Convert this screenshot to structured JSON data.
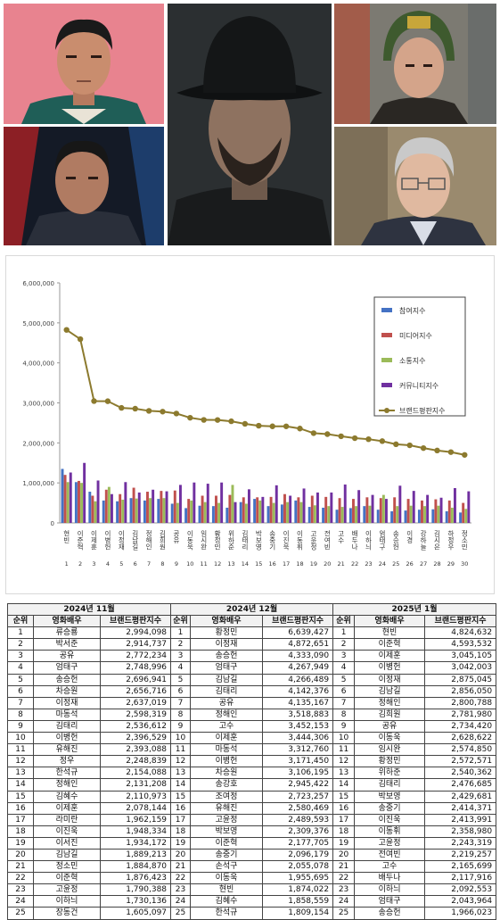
{
  "chart_data": {
    "type": "bar",
    "ylim": [
      0,
      6000000
    ],
    "yticks": [
      "0",
      "1,000,000",
      "2,000,000",
      "3,000,000",
      "4,000,000",
      "5,000,000",
      "6,000,000"
    ],
    "categories": [
      "현빈",
      "이준혁",
      "이제훈",
      "이병헌",
      "이정재",
      "김남길",
      "정해인",
      "김희원",
      "공유",
      "이동욱",
      "임시완",
      "황정민",
      "위하준",
      "김태리",
      "박보영",
      "송중기",
      "이진욱",
      "이동휘",
      "고윤정",
      "전여빈",
      "고수",
      "배두나",
      "이하늬",
      "엄태구",
      "송승헌",
      "이경",
      "강하늘",
      "김시은",
      "하정우",
      "정소민"
    ],
    "ranks": [
      "1",
      "2",
      "3",
      "4",
      "5",
      "6",
      "7",
      "8",
      "9",
      "10",
      "11",
      "12",
      "13",
      "14",
      "15",
      "16",
      "17",
      "18",
      "19",
      "20",
      "21",
      "22",
      "23",
      "24",
      "25",
      "26",
      "27",
      "28",
      "29",
      "30"
    ],
    "legend_position": "right",
    "series": [
      {
        "name": "참여지수",
        "color": "#4472c4",
        "type": "bar",
        "values": [
          1350000,
          1020000,
          780000,
          560000,
          540000,
          620000,
          560000,
          600000,
          480000,
          370000,
          430000,
          420000,
          380000,
          520000,
          600000,
          420000,
          460000,
          560000,
          400000,
          380000,
          330000,
          370000,
          420000,
          330000,
          290000,
          310000,
          330000,
          340000,
          290000,
          260000
        ]
      },
      {
        "name": "미디어지수",
        "color": "#c0504d",
        "type": "bar",
        "values": [
          1200000,
          1050000,
          680000,
          830000,
          720000,
          880000,
          780000,
          800000,
          810000,
          600000,
          680000,
          680000,
          700000,
          640000,
          640000,
          650000,
          720000,
          640000,
          680000,
          650000,
          620000,
          600000,
          640000,
          620000,
          640000,
          600000,
          560000,
          590000,
          560000,
          500000
        ]
      },
      {
        "name": "소통지수",
        "color": "#9bbb59",
        "type": "bar",
        "values": [
          1020000,
          1000000,
          540000,
          900000,
          580000,
          610000,
          620000,
          620000,
          500000,
          560000,
          520000,
          500000,
          950000,
          480000,
          560000,
          500000,
          520000,
          520000,
          440000,
          420000,
          400000,
          420000,
          430000,
          700000,
          420000,
          430000,
          420000,
          430000,
          380000,
          350000
        ]
      },
      {
        "name": "커뮤니티지수",
        "color": "#7030a0",
        "type": "bar",
        "values": [
          1260000,
          1500000,
          1060000,
          720000,
          1020000,
          760000,
          830000,
          790000,
          950000,
          1010000,
          980000,
          1010000,
          520000,
          840000,
          650000,
          940000,
          680000,
          860000,
          760000,
          760000,
          960000,
          820000,
          700000,
          600000,
          930000,
          800000,
          700000,
          630000,
          870000,
          790000
        ]
      },
      {
        "name": "브랜드평판지수",
        "color": "#8c7a2e",
        "type": "line",
        "values": [
          4824632,
          4593532,
          3045105,
          3042003,
          2875045,
          2856050,
          2800788,
          2781980,
          2734420,
          2628622,
          2574850,
          2572571,
          2540362,
          2476685,
          2429681,
          2414371,
          2413991,
          2358980,
          2243319,
          2219257,
          2165699,
          2117916,
          2092553,
          2043964,
          1966023,
          1940000,
          1870000,
          1810000,
          1770000,
          1700000
        ]
      }
    ]
  },
  "tables": [
    {
      "month": "2024년 11월",
      "headers": [
        "순위",
        "영화배우",
        "브랜드평판지수"
      ],
      "rows": [
        [
          "1",
          "류승룡",
          "2,994,098"
        ],
        [
          "2",
          "박서준",
          "2,914,737"
        ],
        [
          "3",
          "공유",
          "2,772,234"
        ],
        [
          "4",
          "엄태구",
          "2,748,996"
        ],
        [
          "5",
          "송승헌",
          "2,696,941"
        ],
        [
          "6",
          "차승원",
          "2,656,716"
        ],
        [
          "7",
          "이정재",
          "2,637,019"
        ],
        [
          "8",
          "마동석",
          "2,598,319"
        ],
        [
          "9",
          "김태리",
          "2,536,612"
        ],
        [
          "10",
          "이병헌",
          "2,396,529"
        ],
        [
          "11",
          "유해진",
          "2,393,088"
        ],
        [
          "12",
          "정우",
          "2,248,839"
        ],
        [
          "13",
          "한석규",
          "2,154,088"
        ],
        [
          "14",
          "정해인",
          "2,131,208"
        ],
        [
          "15",
          "김혜수",
          "2,110,973"
        ],
        [
          "16",
          "이제훈",
          "2,078,144"
        ],
        [
          "17",
          "라미란",
          "1,962,159"
        ],
        [
          "18",
          "이진욱",
          "1,948,334"
        ],
        [
          "19",
          "이서진",
          "1,934,172"
        ],
        [
          "20",
          "김남길",
          "1,889,213"
        ],
        [
          "21",
          "정소민",
          "1,884,870"
        ],
        [
          "22",
          "이준혁",
          "1,876,423"
        ],
        [
          "23",
          "고윤정",
          "1,790,388"
        ],
        [
          "24",
          "이하늬",
          "1,730,136"
        ],
        [
          "25",
          "장동건",
          "1,605,097"
        ]
      ]
    },
    {
      "month": "2024년 12월",
      "headers": [
        "순위",
        "영화배우",
        "브랜드평판지수"
      ],
      "rows": [
        [
          "1",
          "황정민",
          "6,639,427"
        ],
        [
          "2",
          "이정재",
          "4,872,651"
        ],
        [
          "3",
          "송승헌",
          "4,333,090"
        ],
        [
          "4",
          "엄태구",
          "4,267,949"
        ],
        [
          "5",
          "김남길",
          "4,266,489"
        ],
        [
          "6",
          "김태리",
          "4,142,376"
        ],
        [
          "7",
          "공유",
          "4,135,167"
        ],
        [
          "8",
          "정해인",
          "3,518,883"
        ],
        [
          "9",
          "고수",
          "3,452,153"
        ],
        [
          "10",
          "이제훈",
          "3,444,306"
        ],
        [
          "11",
          "마동석",
          "3,312,760"
        ],
        [
          "12",
          "이병헌",
          "3,171,450"
        ],
        [
          "13",
          "차승원",
          "3,106,195"
        ],
        [
          "14",
          "송강호",
          "2,945,422"
        ],
        [
          "15",
          "조여정",
          "2,723,257"
        ],
        [
          "16",
          "유해진",
          "2,580,469"
        ],
        [
          "17",
          "고윤정",
          "2,489,593"
        ],
        [
          "18",
          "박보영",
          "2,309,376"
        ],
        [
          "19",
          "이준혁",
          "2,177,705"
        ],
        [
          "20",
          "송중기",
          "2,096,179"
        ],
        [
          "21",
          "손석구",
          "2,055,078"
        ],
        [
          "22",
          "이동욱",
          "1,955,695"
        ],
        [
          "23",
          "현빈",
          "1,874,022"
        ],
        [
          "24",
          "김혜수",
          "1,858,559"
        ],
        [
          "25",
          "한석규",
          "1,809,154"
        ]
      ]
    },
    {
      "month": "2025년 1월",
      "headers": [
        "순위",
        "영화배우",
        "브랜드평판지수"
      ],
      "rows": [
        [
          "1",
          "현빈",
          "4,824,632"
        ],
        [
          "2",
          "이준혁",
          "4,593,532"
        ],
        [
          "3",
          "이제훈",
          "3,045,105"
        ],
        [
          "4",
          "이병헌",
          "3,042,003"
        ],
        [
          "5",
          "이정재",
          "2,875,045"
        ],
        [
          "6",
          "김남길",
          "2,856,050"
        ],
        [
          "7",
          "정해인",
          "2,800,788"
        ],
        [
          "8",
          "김희원",
          "2,781,980"
        ],
        [
          "9",
          "공유",
          "2,734,420"
        ],
        [
          "10",
          "이동욱",
          "2,628,622"
        ],
        [
          "11",
          "임시완",
          "2,574,850"
        ],
        [
          "12",
          "황정민",
          "2,572,571"
        ],
        [
          "13",
          "위하준",
          "2,540,362"
        ],
        [
          "14",
          "김태리",
          "2,476,685"
        ],
        [
          "15",
          "박보영",
          "2,429,681"
        ],
        [
          "16",
          "송중기",
          "2,414,371"
        ],
        [
          "17",
          "이진욱",
          "2,413,991"
        ],
        [
          "18",
          "이동휘",
          "2,358,980"
        ],
        [
          "19",
          "고윤정",
          "2,243,319"
        ],
        [
          "20",
          "전여빈",
          "2,219,257"
        ],
        [
          "21",
          "고수",
          "2,165,699"
        ],
        [
          "22",
          "배두나",
          "2,117,916"
        ],
        [
          "23",
          "이하늬",
          "2,092,553"
        ],
        [
          "24",
          "엄태구",
          "2,043,964"
        ],
        [
          "25",
          "송승헌",
          "1,966,023"
        ]
      ]
    }
  ]
}
